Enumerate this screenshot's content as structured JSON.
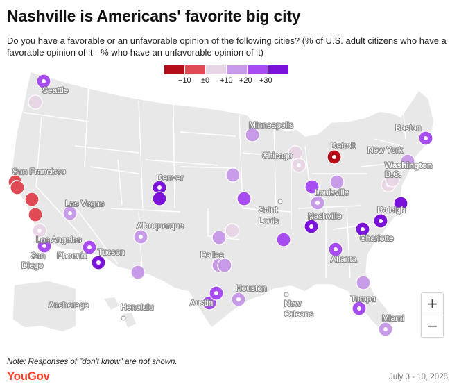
{
  "title": "Nashville is Americans' favorite big city",
  "subtitle": "Do you have a favorable or an unfavorable opinion of the following cities? (% of U.S. adult citizens who have a favorable opinion of it - % who have an unfavorable opinion of it)",
  "legend": [
    {
      "label": "",
      "color": "#b30e1a"
    },
    {
      "label": "−10",
      "color": "#e04a55"
    },
    {
      "label": "±0",
      "color": "#e8d6e6"
    },
    {
      "label": "+10",
      "color": "#c79be8"
    },
    {
      "label": "+20",
      "color": "#a64cf0"
    },
    {
      "label": "+30",
      "color": "#7a12d9"
    }
  ],
  "cities": [
    {
      "name": "Seattle",
      "level": 4
    },
    {
      "name": "San Francisco",
      "level": 1
    },
    {
      "name": "Las Vegas",
      "level": 3
    },
    {
      "name": "Los Angeles",
      "level": 2
    },
    {
      "name": "San Diego",
      "level": 4
    },
    {
      "name": "Phoenix",
      "level": 4
    },
    {
      "name": "Tucson",
      "level": 5
    },
    {
      "name": "Denver",
      "level": 5
    },
    {
      "name": "Albuquerque",
      "level": 3
    },
    {
      "name": "Minneapolis",
      "level": 3
    },
    {
      "name": "Chicago",
      "level": 2
    },
    {
      "name": "Detroit",
      "level": 0
    },
    {
      "name": "Saint Louis",
      "level": null
    },
    {
      "name": "Louisville",
      "level": 3
    },
    {
      "name": "Nashville",
      "level": 5
    },
    {
      "name": "Dallas",
      "level": 3
    },
    {
      "name": "Austin",
      "level": 4
    },
    {
      "name": "Houston",
      "level": 3
    },
    {
      "name": "New Orleans",
      "level": null
    },
    {
      "name": "Atlanta",
      "level": 4
    },
    {
      "name": "Charlotte",
      "level": 5
    },
    {
      "name": "Raleigh",
      "level": 5
    },
    {
      "name": "Washington D.C.",
      "level": 2
    },
    {
      "name": "New York",
      "level": 3
    },
    {
      "name": "Boston",
      "level": 4
    },
    {
      "name": "Tampa",
      "level": 4
    },
    {
      "name": "Miami",
      "level": 3
    },
    {
      "name": "Anchorage",
      "level": null
    },
    {
      "name": "Honolulu",
      "level": null
    }
  ],
  "zoom": {
    "in": "+",
    "out": "−"
  },
  "note": "Note: Responses of \"don't know\" are not shown.",
  "brand": "YouGov",
  "date": "July 3 - 10, 2025"
}
